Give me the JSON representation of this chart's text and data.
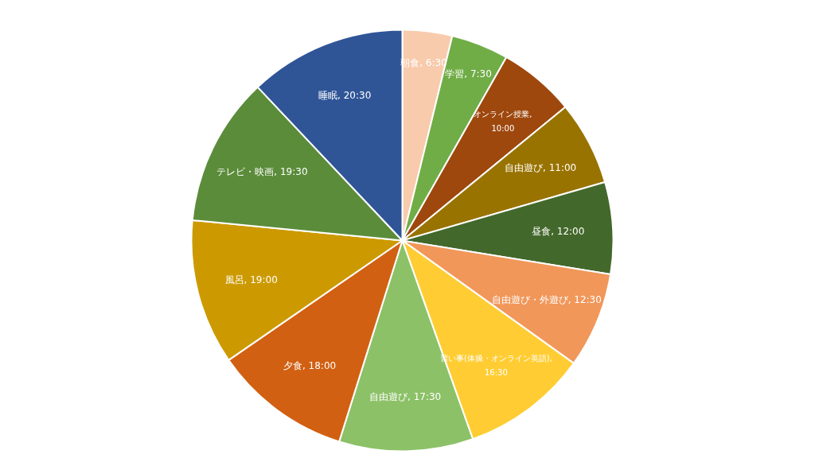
{
  "chart_data": {
    "type": "pie",
    "categories": [
      "朝食, 6:30",
      "学習, 7:30",
      "オンライン授業, 10:00",
      "自由遊び, 11:00",
      "昼食, 12:00",
      "自由遊び・外遊び, 12:30",
      "習い事(体操・オンライン英語), 16:30",
      "自由遊び, 17:30",
      "夕食, 18:00",
      "風呂, 19:00",
      "テレビ・映画, 19:30",
      "睡眠, 20:30"
    ],
    "values": [
      6.5,
      7.5,
      10,
      11,
      12,
      12.5,
      16.5,
      17.5,
      18,
      19,
      19.5,
      20.5
    ],
    "colors": [
      "#f8cbad",
      "#70ad47",
      "#9e480e",
      "#997300",
      "#43682b",
      "#f1975a",
      "#ffcd33",
      "#8cc168",
      "#d26012",
      "#cc9a00",
      "#5b8c3a",
      "#2f5597"
    ],
    "legend": false
  }
}
